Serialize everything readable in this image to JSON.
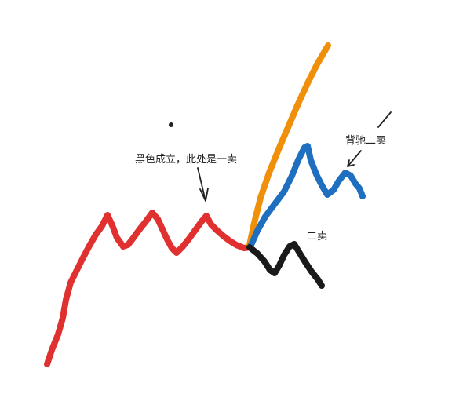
{
  "annotations": {
    "first_sell": "黑色成立，此处是一卖",
    "divergence_second_sell": "背驰二卖",
    "second_sell": "二卖"
  },
  "colors": {
    "red_trend": "#e03030",
    "orange_trend": "#f0900a",
    "blue_trend": "#1f6fc0",
    "black_trend": "#1a1a1a",
    "ink": "#222222"
  }
}
